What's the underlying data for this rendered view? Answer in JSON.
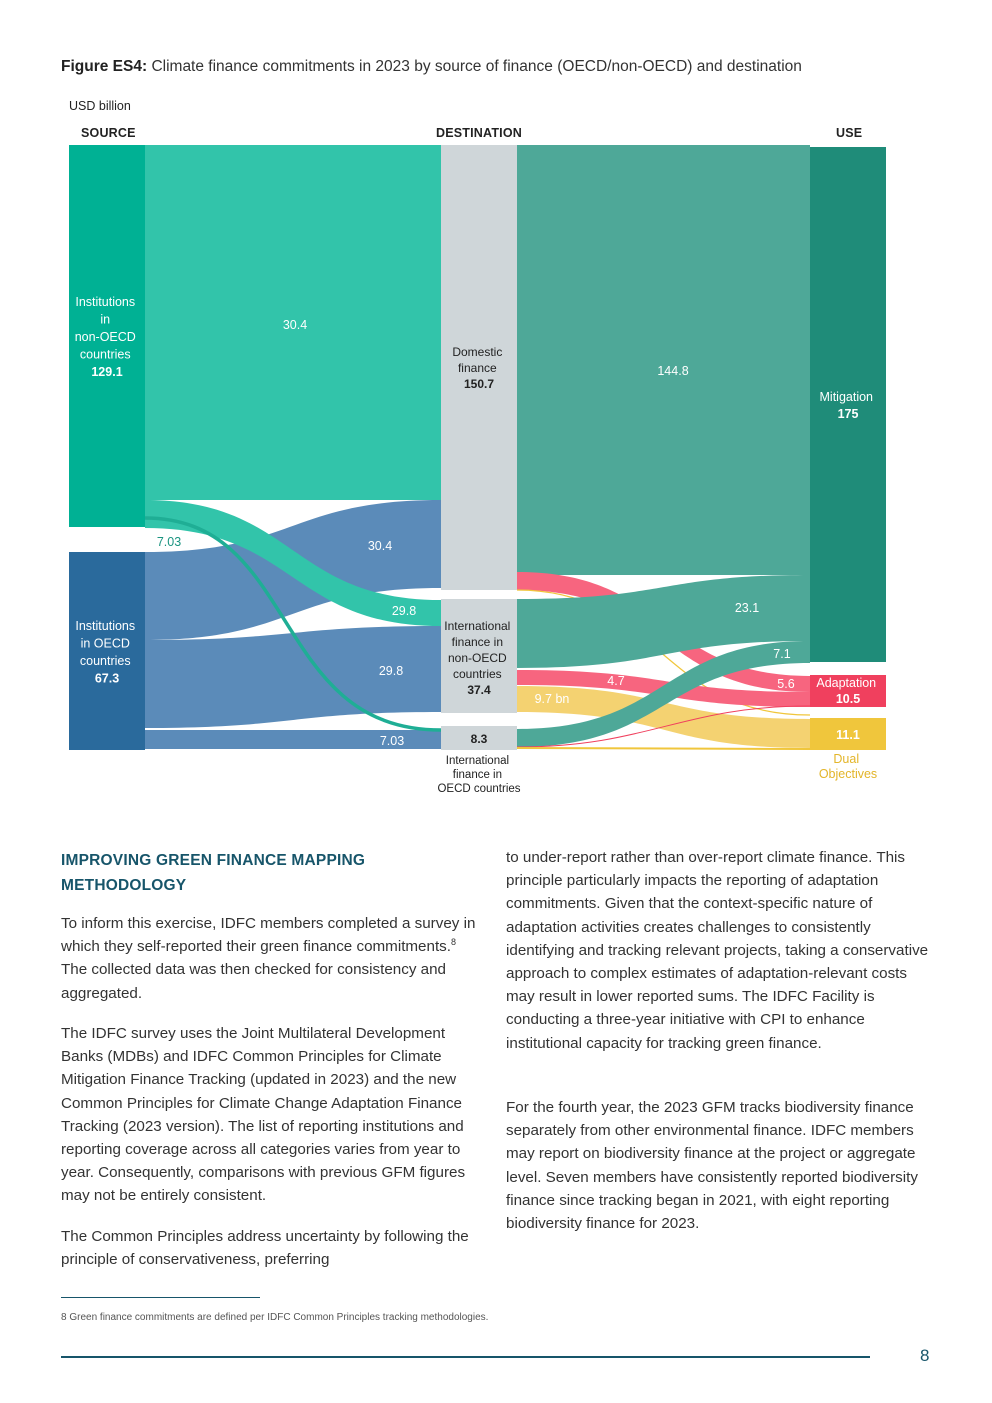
{
  "figure": {
    "caption_label": "Figure ES4:",
    "caption_text": " Climate finance commitments in 2023 by source of finance (OECD/non-OECD) and destination",
    "unit": "USD billion",
    "headers": {
      "source": "SOURCE",
      "destination": "DESTINATION",
      "use": "USE"
    }
  },
  "chart_data": {
    "type": "sankey",
    "unit": "USD billion",
    "nodes": {
      "src_nonoecd": {
        "lines": [
          "Institutions",
          "in",
          "non-OECD",
          "countries"
        ],
        "value": "129.1",
        "color": "#00b194"
      },
      "src_oecd": {
        "lines": [
          "Institutions",
          "in OECD",
          "countries"
        ],
        "value": "67.3",
        "color": "#2a6a9c"
      },
      "dst_domestic": {
        "lines": [
          "Domestic",
          "finance"
        ],
        "value": "150.7",
        "color": "#cfd6d9"
      },
      "dst_intl_nonoecd": {
        "lines": [
          "International",
          "finance in",
          "non-OECD",
          "countries"
        ],
        "value": "37.4",
        "color": "#cfd6d9"
      },
      "dst_intl_oecd": {
        "value": "8.3",
        "lines_below": [
          "International",
          "finance in",
          "OECD countries"
        ],
        "color": "#cfd6d9"
      },
      "use_mitigation": {
        "lines": [
          "Mitigation"
        ],
        "value": "175",
        "color": "#1f8c79"
      },
      "use_adaptation": {
        "lines": [
          "Adaptation"
        ],
        "value": "10.5",
        "color": "#f0405e"
      },
      "use_dual": {
        "value": "11.1",
        "lines_below": [
          "Dual",
          "Objectives"
        ],
        "color": "#f0c63c"
      }
    },
    "flow_labels": {
      "nonoecd_domestic": "30.4",
      "nonoecd_to_oecd": "7.03",
      "oecd_domestic": "30.4",
      "nonoecd_intl": "29.8",
      "oecd_intl": "29.8",
      "oecd_intl_oecd": "7.03",
      "domestic_mitigation": "144.8",
      "intl_mitigation": "23.1",
      "intl_oecd_mitigation": "7.1",
      "adaptation_in": "4.7",
      "adaptation_in2": "5.6",
      "dual_in": "9.7 bn"
    }
  },
  "section": {
    "heading": "IMPROVING GREEN FINANCE MAPPING METHODOLOGY",
    "p1_a": "To inform this exercise, IDFC members completed a survey in which they self-reported their green finance commitments.",
    "p1_sup": "8",
    "p1_b": " The collected data was then checked for consistency and aggregated.",
    "p2": "The IDFC survey uses the Joint Multilateral Development Banks (MDBs) and IDFC Common Principles for Climate Mitigation Finance Tracking (updated in 2023) and the new Common Principles for Climate Change Adaptation Finance Tracking (2023 version). The list of reporting institutions and reporting coverage across all categories varies from year to year. Consequently, comparisons with previous GFM figures may not be entirely consistent.",
    "p3": "The Common Principles address uncertainty by following the principle of conservativeness, preferring",
    "p4": "to under-report rather than over-report climate finance. This principle particularly impacts the reporting of adaptation commitments. Given that the context-specific nature of adaptation activities creates challenges to consistently identifying and tracking relevant projects, taking a conservative approach to complex estimates of adaptation-relevant costs may result in lower reported sums. The IDFC Facility is conducting a three-year initiative with CPI to enhance institutional capacity for tracking green finance.",
    "p5": "For the fourth year, the 2023 GFM tracks biodiversity finance separately from other environmental finance. IDFC members may report on biodiversity finance at the project or aggregate level. Seven members have consistently reported biodiversity finance since tracking began in 2021, with eight reporting biodiversity finance for 2023."
  },
  "footnote": "8  Green finance commitments are defined per IDFC Common Principles tracking methodologies.",
  "page_number": "8"
}
